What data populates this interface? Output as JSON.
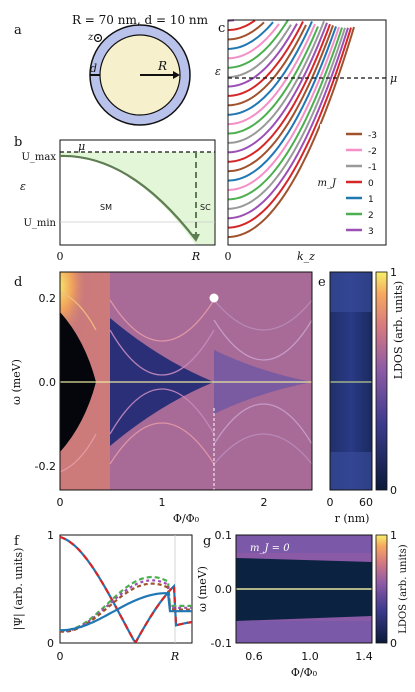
{
  "panel_labels": {
    "a": "a",
    "b": "b",
    "c": "c",
    "d": "d",
    "e": "e",
    "f": "f",
    "g": "g"
  },
  "panel_a": {
    "title": "R = 70 nm, d = 10 nm",
    "radius_label": "R",
    "shell_label": "d",
    "axis_label": "z",
    "colors": {
      "core": "#f7f0cc",
      "shell": "#b9c2ea"
    }
  },
  "panel_b": {
    "mu": "μ",
    "u_max": "U_max",
    "u_min": "U_min",
    "y_label": "ε",
    "sm": "SM",
    "sc": "SC",
    "x_ticks": [
      "0",
      "R"
    ],
    "colors": {
      "curve": "#5f7d52",
      "fill": "#e3f6d8"
    }
  },
  "panel_c": {
    "y_label": "ε",
    "x_label": "k_z",
    "x_tick": "0",
    "mu": "μ",
    "legend_title": "m_J",
    "legend": [
      {
        "label": "-3",
        "color": "#a0522d"
      },
      {
        "label": "-2",
        "color": "#f48fc8"
      },
      {
        "label": "-1",
        "color": "#999999"
      },
      {
        "label": "0",
        "color": "#d62728"
      },
      {
        "label": "1",
        "color": "#1f77b4"
      },
      {
        "label": "2",
        "color": "#4caf50"
      },
      {
        "label": "3",
        "color": "#9c4fb4"
      }
    ]
  },
  "panel_d": {
    "y_label": "ω (meV)",
    "x_label": "Φ/Φ₀",
    "y_ticks": [
      "0.2",
      "0.0",
      "-0.2"
    ],
    "x_ticks": [
      "0",
      "1",
      "2"
    ]
  },
  "panel_e": {
    "x_label": "r (nm)",
    "x_ticks": [
      "0",
      "60"
    ],
    "cbar_label": "LDOS (arb. units)",
    "cbar_ticks": [
      "1",
      "0"
    ]
  },
  "panel_f": {
    "y_label": "|Ψ| (arb. units)",
    "y_ticks": [
      "1",
      "0"
    ],
    "x_ticks": [
      "0",
      "R"
    ]
  },
  "panel_g": {
    "annotation": "m_J = 0",
    "y_label": "ω (meV)",
    "x_label": "Φ/Φ₀",
    "y_ticks": [
      "0.1",
      "0.0",
      "-0.1"
    ],
    "x_ticks": [
      "0.6",
      "1.0",
      "1.4"
    ],
    "cbar_label": "LDOS (arb. units)",
    "cbar_ticks": [
      "1",
      "0"
    ]
  }
}
